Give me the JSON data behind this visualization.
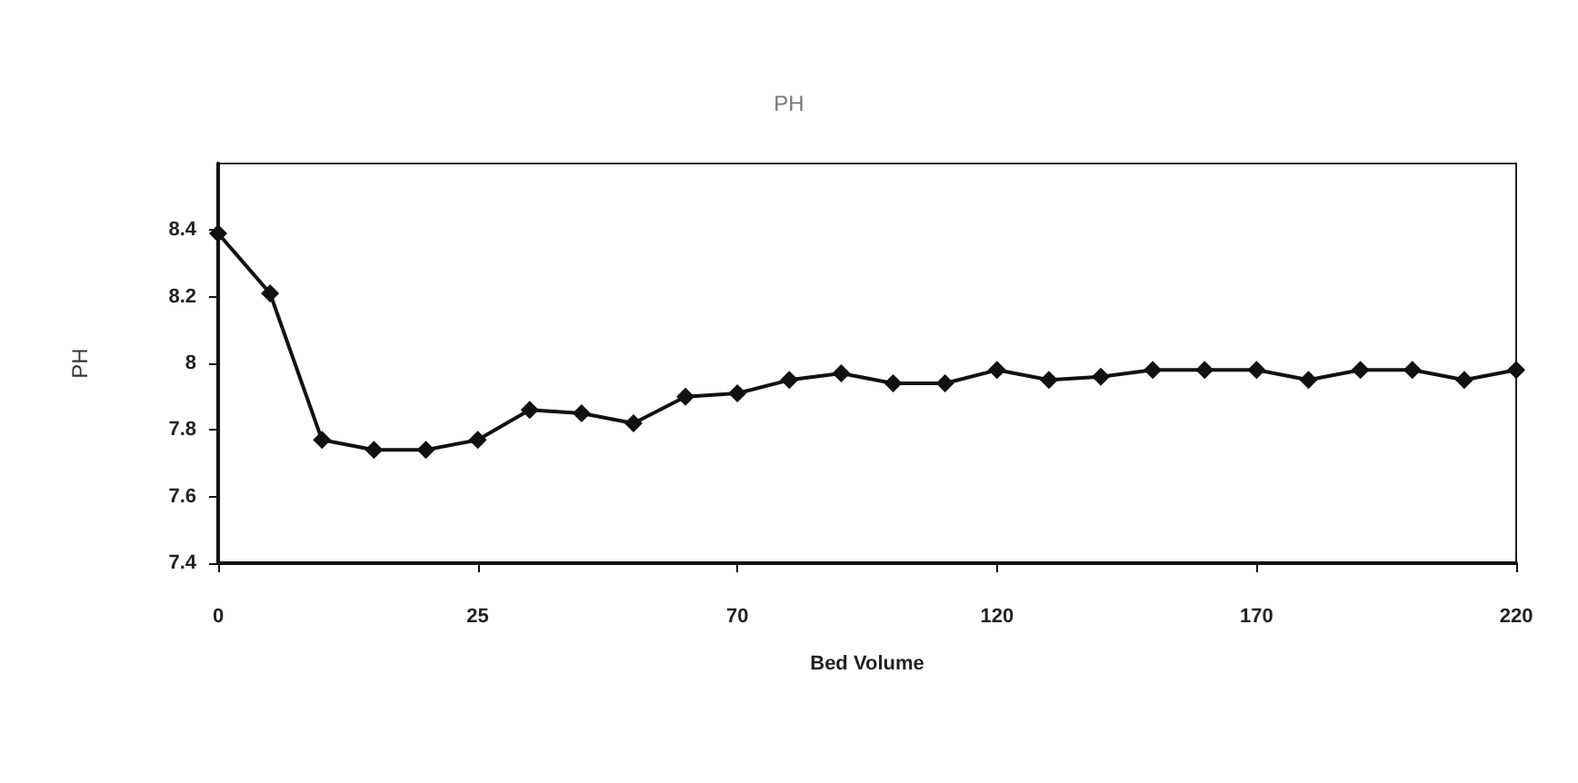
{
  "chart_data": {
    "type": "line",
    "title": "PH",
    "xlabel": "Bed Volume",
    "ylabel": "PH",
    "categories": [
      "0",
      null,
      null,
      null,
      null,
      "25",
      null,
      null,
      null,
      null,
      "70",
      null,
      null,
      null,
      null,
      "120",
      null,
      null,
      null,
      null,
      "170",
      null,
      null,
      null,
      null,
      "220"
    ],
    "series": [
      {
        "color": "#111111",
        "values": [
          8.39,
          8.21,
          7.77,
          7.74,
          7.74,
          7.77,
          7.86,
          7.85,
          7.82,
          7.9,
          7.91,
          7.95,
          7.97,
          7.94,
          7.94,
          7.98,
          7.95,
          7.96,
          7.98,
          7.98,
          7.98,
          7.95,
          7.98,
          7.98,
          7.95,
          7.98
        ]
      }
    ],
    "ylim": [
      7.4,
      8.6
    ],
    "yticks": [
      7.4,
      7.6,
      7.8,
      8,
      8.2,
      8.4
    ],
    "grid": false,
    "marker": "diamond",
    "line_style": "solid"
  }
}
